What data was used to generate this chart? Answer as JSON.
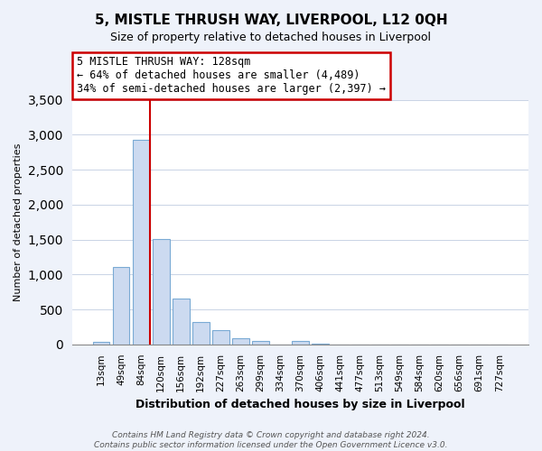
{
  "title": "5, MISTLE THRUSH WAY, LIVERPOOL, L12 0QH",
  "subtitle": "Size of property relative to detached houses in Liverpool",
  "xlabel": "Distribution of detached houses by size in Liverpool",
  "ylabel": "Number of detached properties",
  "categories": [
    "13sqm",
    "49sqm",
    "84sqm",
    "120sqm",
    "156sqm",
    "192sqm",
    "227sqm",
    "263sqm",
    "299sqm",
    "334sqm",
    "370sqm",
    "406sqm",
    "441sqm",
    "477sqm",
    "513sqm",
    "549sqm",
    "584sqm",
    "620sqm",
    "656sqm",
    "691sqm",
    "727sqm"
  ],
  "values": [
    40,
    1110,
    2930,
    1510,
    650,
    325,
    200,
    90,
    55,
    0,
    45,
    10,
    0,
    0,
    0,
    0,
    0,
    0,
    0,
    0,
    0
  ],
  "bar_color": "#ccdaf0",
  "bar_edge_color": "#7aaad4",
  "vline_color": "#cc0000",
  "annotation_text": "5 MISTLE THRUSH WAY: 128sqm\n← 64% of detached houses are smaller (4,489)\n34% of semi-detached houses are larger (2,397) →",
  "annotation_box_color": "#ffffff",
  "annotation_box_edge": "#cc0000",
  "ylim": [
    0,
    3500
  ],
  "yticks": [
    0,
    500,
    1000,
    1500,
    2000,
    2500,
    3000,
    3500
  ],
  "footer_line1": "Contains HM Land Registry data © Crown copyright and database right 2024.",
  "footer_line2": "Contains public sector information licensed under the Open Government Licence v3.0.",
  "bg_color": "#eef2fa",
  "plot_bg_color": "#ffffff",
  "title_fontsize": 11,
  "subtitle_fontsize": 9,
  "xlabel_fontsize": 9,
  "ylabel_fontsize": 8,
  "tick_fontsize": 7.5,
  "annotation_fontsize": 8.5,
  "footer_fontsize": 6.5
}
